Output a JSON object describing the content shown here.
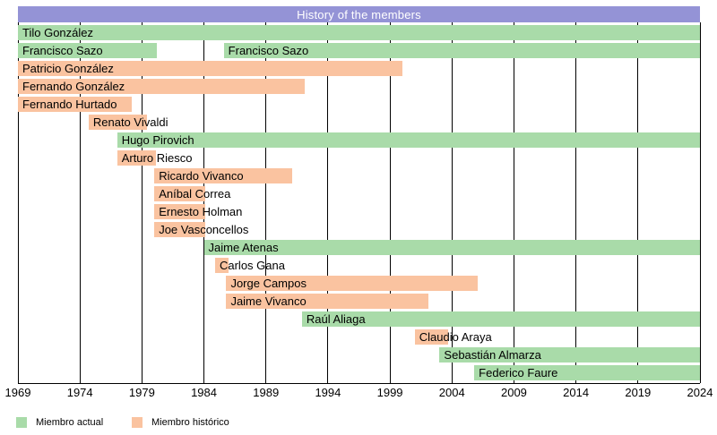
{
  "title": "History of the members",
  "colors": {
    "current": "#a9dba9",
    "historic": "#fac3a0",
    "title_bg": "#9493d6",
    "title_text": "#ffffff",
    "gridline": "#000000",
    "axis_text": "#000000"
  },
  "legend": {
    "items": [
      {
        "label": "Miembro actual",
        "status": "current"
      },
      {
        "label": "Miembro histórico",
        "status": "historic"
      }
    ]
  },
  "chart_data": {
    "type": "timeline",
    "title": "History of the members",
    "xlabel": "",
    "ylabel": "",
    "x_range": [
      1969,
      2024
    ],
    "x_ticks": [
      1969,
      1974,
      1979,
      1984,
      1989,
      1994,
      1999,
      2004,
      2009,
      2014,
      2019,
      2024
    ],
    "grid": "vertical",
    "legend_position": "bottom-left",
    "status_legend": {
      "current": "Miembro actual",
      "historic": "Miembro histórico"
    },
    "members": [
      {
        "name": "Tilo González",
        "status": "current",
        "periods": [
          [
            1969,
            2024
          ]
        ]
      },
      {
        "name": "Francisco Sazo",
        "status": "current",
        "periods": [
          [
            1969,
            1980.2
          ],
          [
            1985.6,
            2024
          ]
        ]
      },
      {
        "name": "Patricio González",
        "status": "historic",
        "periods": [
          [
            1969,
            2000
          ]
        ]
      },
      {
        "name": "Fernando González",
        "status": "historic",
        "periods": [
          [
            1969,
            1992.1
          ]
        ]
      },
      {
        "name": "Fernando Hurtado",
        "status": "historic",
        "periods": [
          [
            1969,
            1978.2
          ]
        ]
      },
      {
        "name": "Renato Vivaldi",
        "status": "historic",
        "periods": [
          [
            1974.7,
            1979.4
          ]
        ]
      },
      {
        "name": "Hugo Pirovich",
        "status": "current",
        "periods": [
          [
            1977,
            2024
          ]
        ]
      },
      {
        "name": "Arturo Riesco",
        "status": "historic",
        "periods": [
          [
            1977,
            1980.1
          ]
        ]
      },
      {
        "name": "Ricardo Vivanco",
        "status": "historic",
        "periods": [
          [
            1980,
            1991.1
          ]
        ]
      },
      {
        "name": "Aníbal Correa",
        "status": "historic",
        "periods": [
          [
            1980,
            1984.1
          ]
        ]
      },
      {
        "name": "Ernesto Holman",
        "status": "historic",
        "periods": [
          [
            1980,
            1984.1
          ]
        ]
      },
      {
        "name": "Joe Vasconcellos",
        "status": "historic",
        "periods": [
          [
            1980,
            1984.1
          ]
        ]
      },
      {
        "name": "Jaime Atenas",
        "status": "current",
        "periods": [
          [
            1984,
            2024
          ]
        ]
      },
      {
        "name": "Carlos Gana",
        "status": "historic",
        "periods": [
          [
            1984.9,
            1986
          ]
        ]
      },
      {
        "name": "Jorge Campos",
        "status": "historic",
        "periods": [
          [
            1985.8,
            2006.1
          ]
        ]
      },
      {
        "name": "Jaime Vivanco",
        "status": "historic",
        "periods": [
          [
            1985.8,
            2002.1
          ]
        ]
      },
      {
        "name": "Raúl Aliaga",
        "status": "current",
        "periods": [
          [
            1991.9,
            2024
          ]
        ]
      },
      {
        "name": "Claudio Araya",
        "status": "historic",
        "periods": [
          [
            2001,
            2003.7
          ]
        ]
      },
      {
        "name": "Sebastián Almarza",
        "status": "current",
        "periods": [
          [
            2003,
            2024
          ]
        ]
      },
      {
        "name": "Federico Faure",
        "status": "current",
        "periods": [
          [
            2005.8,
            2024
          ]
        ]
      }
    ]
  }
}
